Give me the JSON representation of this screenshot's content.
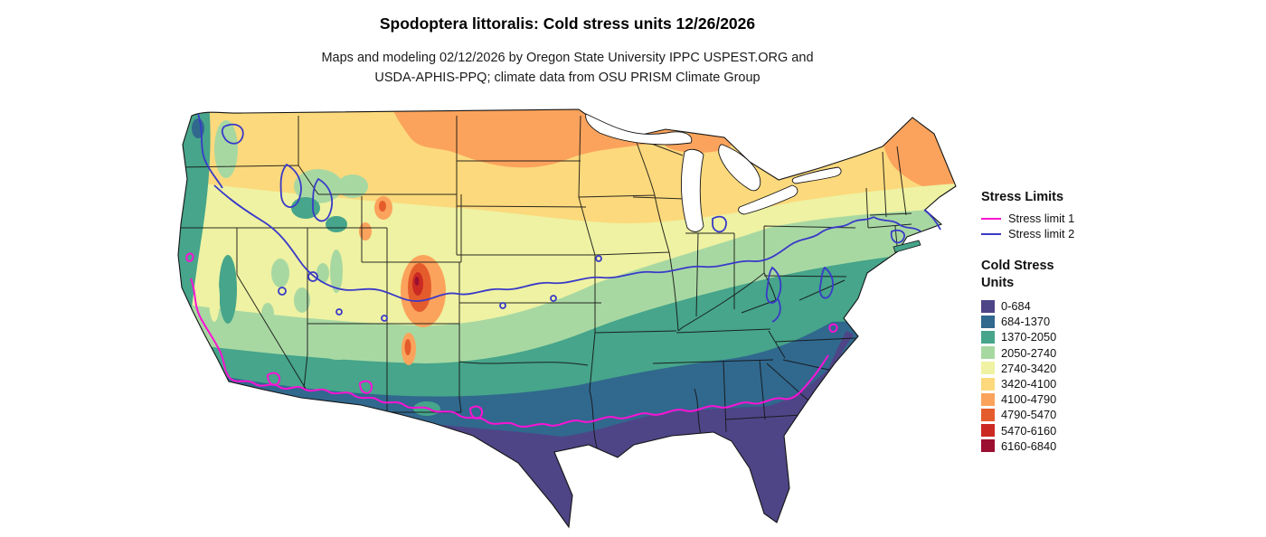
{
  "title": "Spodoptera littoralis: Cold stress units 12/26/2026",
  "subtitle_line1": "Maps and modeling 02/12/2026 by Oregon State University IPPC USPEST.ORG and",
  "subtitle_line2": "USDA-APHIS-PPQ; climate data from OSU PRISM Climate Group",
  "legend": {
    "stress_limits": {
      "title": "Stress Limits",
      "items": [
        {
          "label": "Stress limit 1",
          "color": "#f913d4"
        },
        {
          "label": "Stress limit 2",
          "color": "#3a3ac8"
        }
      ]
    },
    "cold_stress": {
      "title": "Cold Stress Units",
      "items": [
        {
          "label": "0-684",
          "color": "#4e4587"
        },
        {
          "label": "684-1370",
          "color": "#31688e"
        },
        {
          "label": "1370-2050",
          "color": "#46a58a"
        },
        {
          "label": "2050-2740",
          "color": "#a8d8a2"
        },
        {
          "label": "2740-3420",
          "color": "#eef2a2"
        },
        {
          "label": "3420-4100",
          "color": "#fcd97c"
        },
        {
          "label": "4100-4790",
          "color": "#fba35c"
        },
        {
          "label": "4790-5470",
          "color": "#e55c2c"
        },
        {
          "label": "5470-6160",
          "color": "#cb2a23"
        },
        {
          "label": "6160-6840",
          "color": "#9b0f31"
        }
      ]
    }
  }
}
